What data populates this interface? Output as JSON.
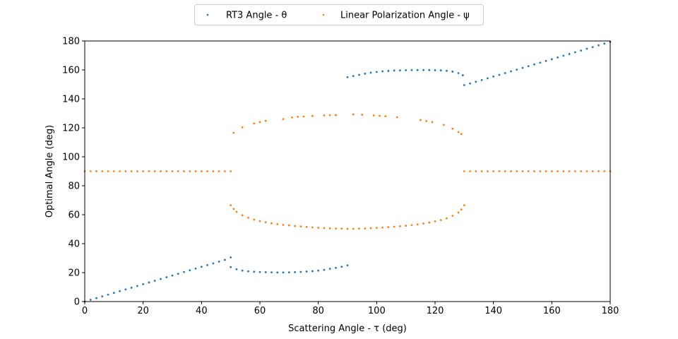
{
  "chart_data": {
    "type": "scatter",
    "title": "",
    "xlabel": "Scattering Angle - τ (deg)",
    "ylabel": "Optimal Angle (deg)",
    "xlim": [
      0,
      180
    ],
    "ylim": [
      0,
      180
    ],
    "xticks": [
      0,
      20,
      40,
      60,
      80,
      100,
      120,
      140,
      160,
      180
    ],
    "yticks": [
      0,
      20,
      40,
      60,
      80,
      100,
      120,
      140,
      160,
      180
    ],
    "grid": false,
    "legend_position": "top-center",
    "series": [
      {
        "name": "RT3 Angle - θ",
        "color": "#1f77b4",
        "points": [
          [
            0,
            0
          ],
          [
            2,
            1.2
          ],
          [
            4,
            2.4
          ],
          [
            6,
            3.6
          ],
          [
            8,
            4.8
          ],
          [
            10,
            6
          ],
          [
            12,
            7.2
          ],
          [
            14,
            8.4
          ],
          [
            16,
            9.6
          ],
          [
            18,
            10.8
          ],
          [
            20,
            12
          ],
          [
            22,
            13.2
          ],
          [
            24,
            14.4
          ],
          [
            26,
            15.6
          ],
          [
            28,
            16.8
          ],
          [
            30,
            18
          ],
          [
            32,
            19.2
          ],
          [
            34,
            20.4
          ],
          [
            36,
            21.6
          ],
          [
            38,
            22.8
          ],
          [
            40,
            24
          ],
          [
            42,
            25.2
          ],
          [
            44,
            26.4
          ],
          [
            46,
            27.6
          ],
          [
            48,
            28.8
          ],
          [
            50,
            30.5
          ],
          [
            50,
            23.8
          ],
          [
            52,
            22.3
          ],
          [
            54,
            21.4
          ],
          [
            56,
            20.9
          ],
          [
            58,
            20.6
          ],
          [
            60,
            20.4
          ],
          [
            62,
            20.3
          ],
          [
            64,
            20.2
          ],
          [
            66,
            20.1
          ],
          [
            68,
            20.1
          ],
          [
            70,
            20.2
          ],
          [
            72,
            20.3
          ],
          [
            74,
            20.5
          ],
          [
            76,
            20.7
          ],
          [
            78,
            21.0
          ],
          [
            80,
            21.4
          ],
          [
            82,
            21.9
          ],
          [
            84,
            22.6
          ],
          [
            86,
            23.3
          ],
          [
            88,
            24.1
          ],
          [
            90,
            25.0
          ],
          [
            90,
            155.0
          ],
          [
            92,
            155.8
          ],
          [
            94,
            156.6
          ],
          [
            96,
            157.4
          ],
          [
            98,
            158.1
          ],
          [
            100,
            158.6
          ],
          [
            102,
            159.0
          ],
          [
            104,
            159.3
          ],
          [
            106,
            159.6
          ],
          [
            108,
            159.7
          ],
          [
            110,
            159.8
          ],
          [
            112,
            159.9
          ],
          [
            114,
            159.9
          ],
          [
            116,
            159.9
          ],
          [
            118,
            159.9
          ],
          [
            120,
            159.8
          ],
          [
            122,
            159.7
          ],
          [
            124,
            159.4
          ],
          [
            126,
            158.8
          ],
          [
            128,
            157.8
          ],
          [
            129.5,
            156.3
          ],
          [
            130,
            149.5
          ],
          [
            132,
            150.6
          ],
          [
            134,
            151.8
          ],
          [
            136,
            153.0
          ],
          [
            138,
            154.2
          ],
          [
            140,
            155.4
          ],
          [
            142,
            156.6
          ],
          [
            144,
            157.8
          ],
          [
            146,
            159.0
          ],
          [
            148,
            160.2
          ],
          [
            150,
            161.4
          ],
          [
            152,
            162.6
          ],
          [
            154,
            163.8
          ],
          [
            156,
            165.0
          ],
          [
            158,
            166.2
          ],
          [
            160,
            167.4
          ],
          [
            162,
            168.6
          ],
          [
            164,
            169.8
          ],
          [
            166,
            171.0
          ],
          [
            168,
            172.2
          ],
          [
            170,
            173.4
          ],
          [
            172,
            174.6
          ],
          [
            174,
            175.8
          ],
          [
            176,
            177.0
          ],
          [
            178,
            178.2
          ],
          [
            180,
            179.4
          ]
        ]
      },
      {
        "name": "Linear Polarization Angle - ψ",
        "color": "#ff7f0e",
        "points": [
          [
            0,
            90
          ],
          [
            2,
            90
          ],
          [
            4,
            90
          ],
          [
            6,
            90
          ],
          [
            8,
            90
          ],
          [
            10,
            90
          ],
          [
            12,
            90
          ],
          [
            14,
            90
          ],
          [
            16,
            90
          ],
          [
            18,
            90
          ],
          [
            20,
            90
          ],
          [
            22,
            90
          ],
          [
            24,
            90
          ],
          [
            26,
            90
          ],
          [
            28,
            90
          ],
          [
            30,
            90
          ],
          [
            32,
            90
          ],
          [
            34,
            90
          ],
          [
            36,
            90
          ],
          [
            38,
            90
          ],
          [
            40,
            90
          ],
          [
            42,
            90
          ],
          [
            44,
            90
          ],
          [
            46,
            90
          ],
          [
            48,
            90
          ],
          [
            50,
            90
          ],
          [
            50,
            66.5
          ],
          [
            51,
            64.0
          ],
          [
            52,
            62.0
          ],
          [
            54,
            59.6
          ],
          [
            56,
            57.9
          ],
          [
            58,
            56.6
          ],
          [
            60,
            55.6
          ],
          [
            62,
            54.8
          ],
          [
            64,
            54.1
          ],
          [
            66,
            53.5
          ],
          [
            68,
            53.0
          ],
          [
            70,
            52.6
          ],
          [
            72,
            52.2
          ],
          [
            74,
            51.9
          ],
          [
            76,
            51.6
          ],
          [
            78,
            51.3
          ],
          [
            80,
            51.0
          ],
          [
            82,
            50.8
          ],
          [
            84,
            50.6
          ],
          [
            86,
            50.5
          ],
          [
            88,
            50.4
          ],
          [
            90,
            50.3
          ],
          [
            92,
            50.3
          ],
          [
            94,
            50.4
          ],
          [
            96,
            50.5
          ],
          [
            98,
            50.7
          ],
          [
            100,
            50.9
          ],
          [
            102,
            51.1
          ],
          [
            104,
            51.4
          ],
          [
            106,
            51.7
          ],
          [
            108,
            52.0
          ],
          [
            110,
            52.4
          ],
          [
            112,
            52.8
          ],
          [
            114,
            53.3
          ],
          [
            116,
            53.9
          ],
          [
            118,
            54.6
          ],
          [
            120,
            55.4
          ],
          [
            122,
            56.3
          ],
          [
            124,
            57.5
          ],
          [
            126,
            59.2
          ],
          [
            128,
            61.5
          ],
          [
            129,
            63.6
          ],
          [
            130,
            66.5
          ],
          [
            51,
            116.5
          ],
          [
            54,
            120.3
          ],
          [
            58,
            123.0
          ],
          [
            60,
            124.0
          ],
          [
            62,
            124.8
          ],
          [
            68,
            126.0
          ],
          [
            71,
            127.2
          ],
          [
            73,
            127.6
          ],
          [
            75,
            127.8
          ],
          [
            78,
            128.2
          ],
          [
            82,
            128.6
          ],
          [
            84,
            128.7
          ],
          [
            86,
            128.8
          ],
          [
            92,
            129.3
          ],
          [
            95,
            129.0
          ],
          [
            99,
            128.6
          ],
          [
            101,
            128.3
          ],
          [
            103,
            128.0
          ],
          [
            107,
            127.3
          ],
          [
            115,
            125.4
          ],
          [
            117,
            124.7
          ],
          [
            119,
            124.0
          ],
          [
            123,
            122.0
          ],
          [
            126,
            119.4
          ],
          [
            128,
            117.0
          ],
          [
            129,
            115.7
          ],
          [
            130,
            90
          ],
          [
            132,
            90
          ],
          [
            134,
            90
          ],
          [
            136,
            90
          ],
          [
            138,
            90
          ],
          [
            140,
            90
          ],
          [
            142,
            90
          ],
          [
            144,
            90
          ],
          [
            146,
            90
          ],
          [
            148,
            90
          ],
          [
            150,
            90
          ],
          [
            152,
            90
          ],
          [
            154,
            90
          ],
          [
            156,
            90
          ],
          [
            158,
            90
          ],
          [
            160,
            90
          ],
          [
            162,
            90
          ],
          [
            164,
            90
          ],
          [
            166,
            90
          ],
          [
            168,
            90
          ],
          [
            170,
            90
          ],
          [
            172,
            90
          ],
          [
            174,
            90
          ],
          [
            176,
            90
          ],
          [
            178,
            90
          ],
          [
            180,
            90
          ]
        ]
      }
    ]
  }
}
